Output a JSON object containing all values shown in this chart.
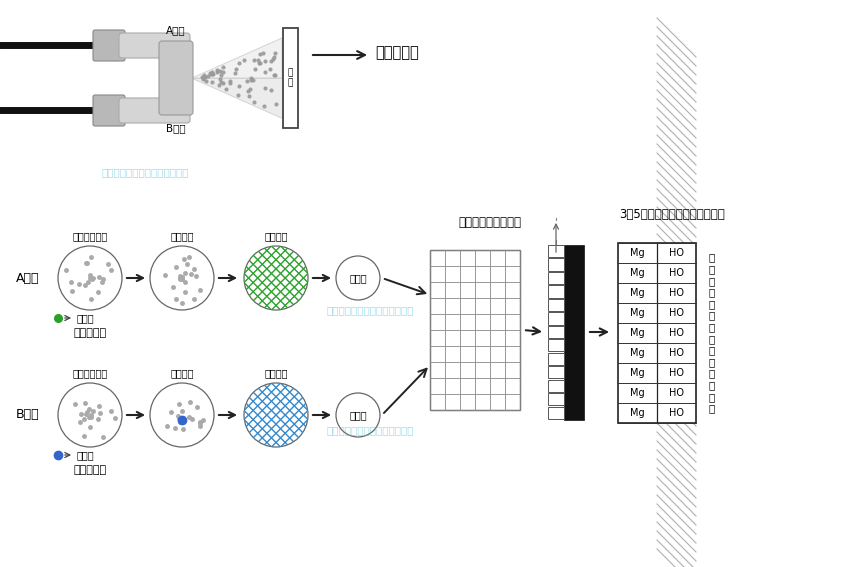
{
  "bg_color": "#ffffff",
  "watermark": "上海无忧树新材料科技有限公司",
  "watermark_color": "#45c0dc",
  "top_arrow_label": "喷膜防水层",
  "base_label": "基\n面",
  "A_label": "A组份",
  "B_label": "B组份",
  "monomer_label": "丙烯酸盐单体",
  "hardener_label": "固化剂",
  "stir_label": "搅拌混合",
  "mix_label": "混合均匀",
  "free_label": "自由基",
  "add_hardener": "添加固化剂",
  "collision_label": "在基层表面撞击混合",
  "three_d_label": "3～5秒形成三维网状结构弹性体",
  "penetrate_label": "渗\n透\n到\n混\n凝\n土\n表\n层\n产\n生\n化\n学\n粘\n接",
  "green_dot_color": "#2aa02a",
  "blue_dot_color": "#3366cc",
  "green_grid_color": "#2aa02a",
  "blue_grid_color": "#3388cc",
  "arrow_color": "#222222",
  "fig_width": 8.5,
  "fig_height": 5.67,
  "dpi": 100
}
